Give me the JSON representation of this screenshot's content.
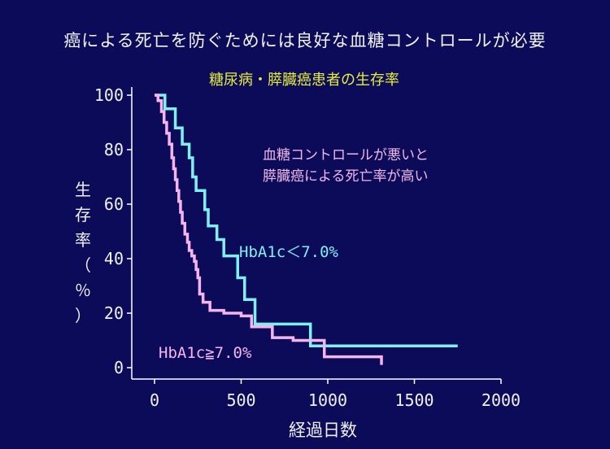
{
  "page": {
    "title": "癌による死亡を防ぐためには良好な血糖コントロールが必要"
  },
  "annotation": {
    "line1": "血糖コントロールが悪いと",
    "line2": "膵臓癌による死亡率が高い"
  },
  "chart_data": {
    "type": "line",
    "title": "糖尿病・膵臓癌患者の生存率",
    "xlabel": "経過日数",
    "ylabel": "生存率（％）",
    "xlim": [
      0,
      2000
    ],
    "ylim": [
      0,
      100
    ],
    "x_ticks": [
      0,
      500,
      1000,
      1500,
      2000
    ],
    "y_ticks": [
      0,
      20,
      40,
      60,
      80,
      100
    ],
    "grid": false,
    "series": [
      {
        "name": "HbA1c＜7.0%",
        "color": "#7ff0f0",
        "step": "post",
        "x": [
          0,
          60,
          120,
          160,
          200,
          220,
          240,
          290,
          310,
          360,
          400,
          480,
          520,
          580,
          900,
          1750
        ],
        "y": [
          100,
          95,
          88,
          82,
          77,
          70,
          65,
          58,
          52,
          47,
          41,
          33,
          25,
          16,
          8,
          8
        ]
      },
      {
        "name": "HbA1c≧7.0%",
        "color": "#f5b5ec",
        "step": "post",
        "x": [
          0,
          20,
          40,
          55,
          70,
          85,
          100,
          110,
          120,
          130,
          140,
          150,
          160,
          175,
          190,
          200,
          215,
          230,
          240,
          250,
          260,
          280,
          320,
          400,
          500,
          560,
          680,
          800,
          980,
          1310
        ],
        "y": [
          100,
          98,
          94,
          90,
          86,
          82,
          77,
          73,
          69,
          65,
          61,
          57,
          53,
          49,
          46,
          43,
          41,
          39,
          36,
          33,
          27,
          24,
          21,
          20,
          19,
          15,
          11,
          10,
          4,
          1
        ]
      }
    ]
  }
}
